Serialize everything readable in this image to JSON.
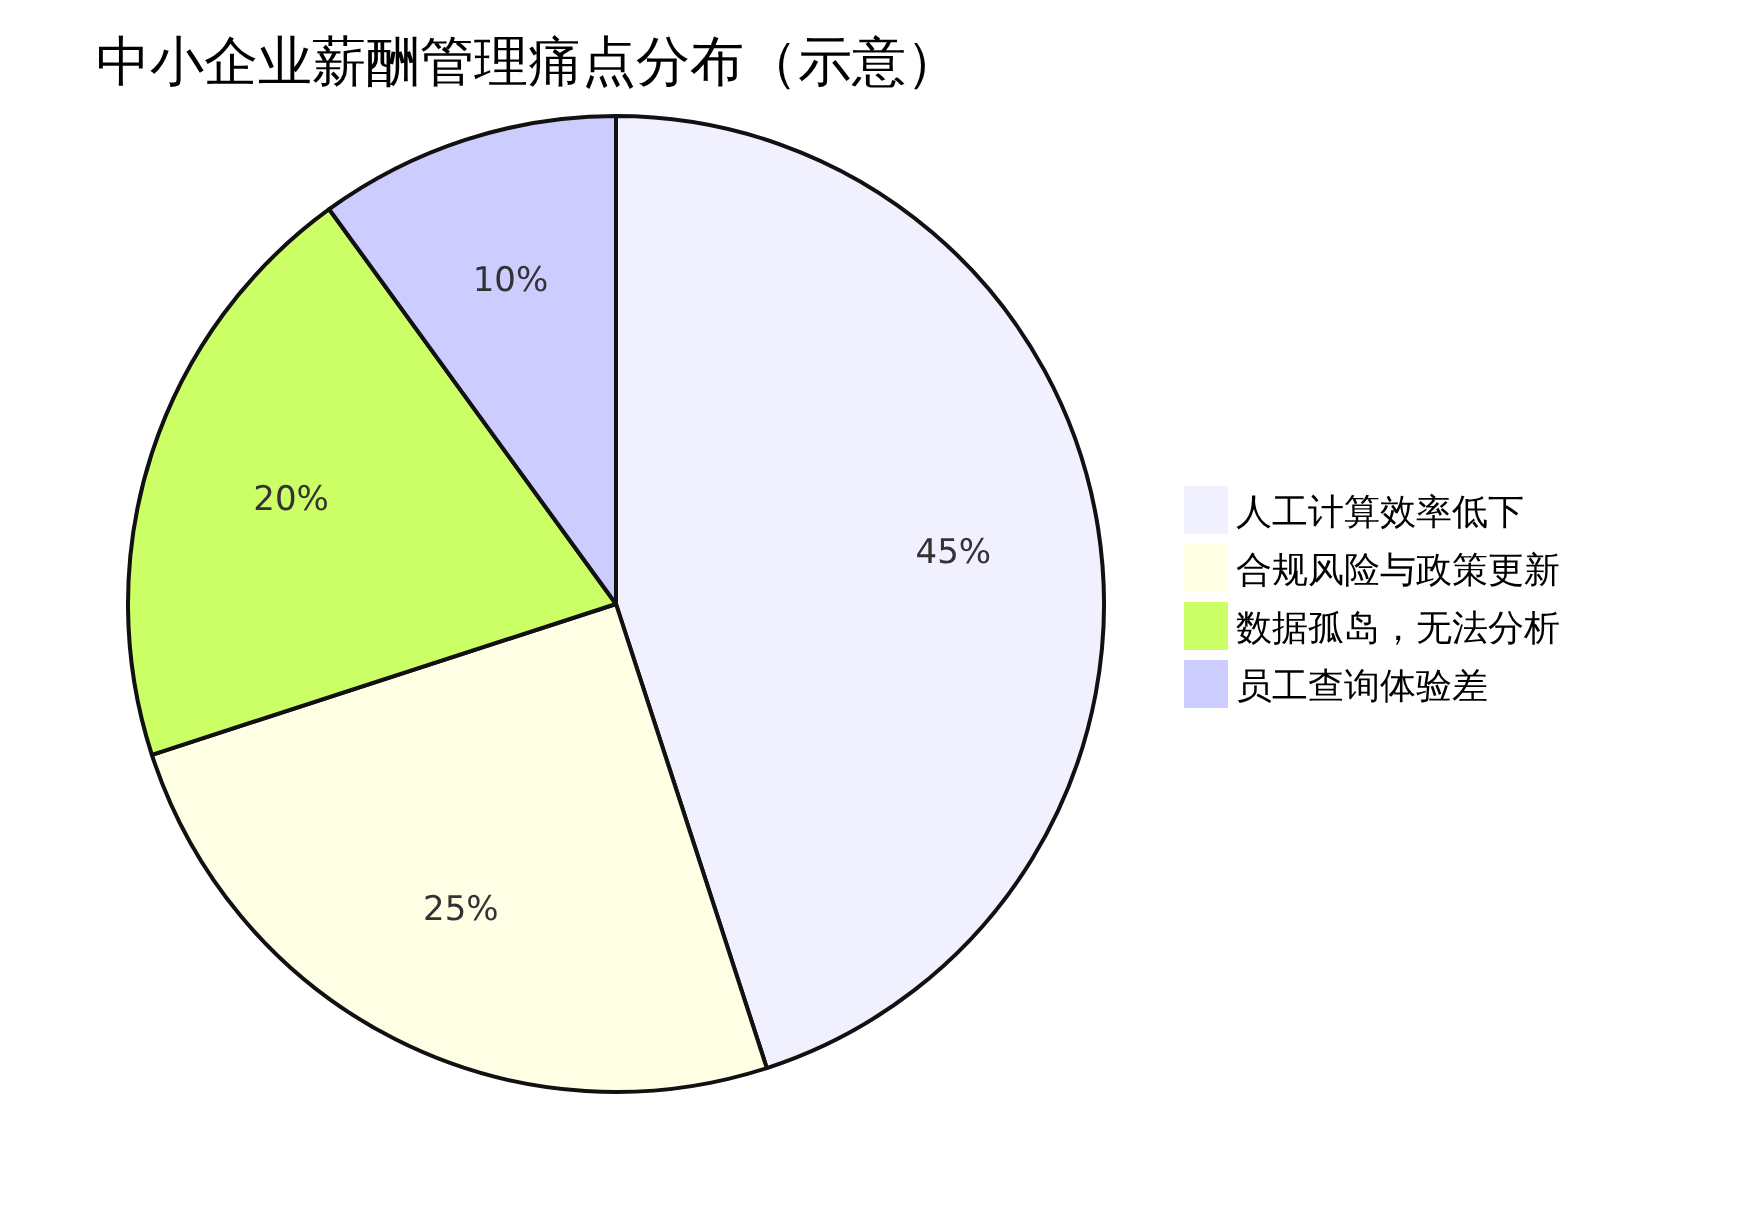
{
  "chart_data": {
    "type": "pie",
    "title": "中小企业薪酬管理痛点分布（示意）",
    "categories": [
      "人工计算效率低下",
      "合规风险与政策更新",
      "数据孤岛，无法分析",
      "员工查询体验差"
    ],
    "values": [
      45,
      25,
      20,
      10
    ],
    "colors": [
      "#f0f0ff",
      "#ffffe6",
      "#ccff66",
      "#ccccff"
    ],
    "value_labels": [
      "45%",
      "25%",
      "20%",
      "10%"
    ],
    "legend": "right"
  }
}
